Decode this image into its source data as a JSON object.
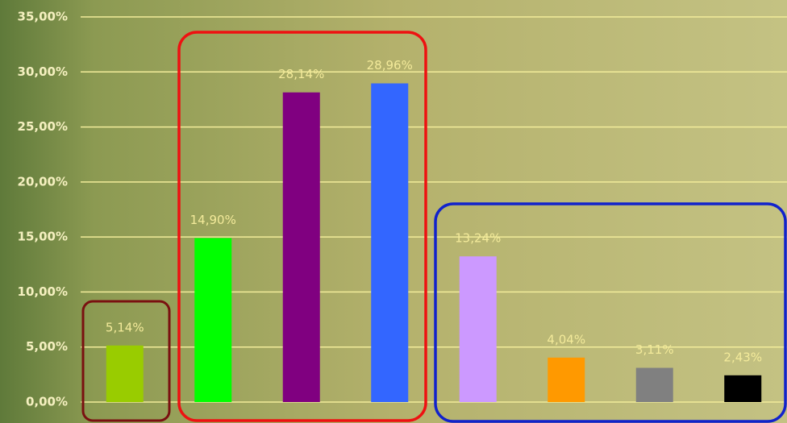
{
  "chart_data": {
    "type": "bar",
    "categories": [
      null,
      null,
      null,
      null,
      null,
      null,
      null,
      null
    ],
    "values": [
      5.14,
      14.9,
      28.14,
      28.96,
      13.24,
      4.04,
      3.11,
      2.43
    ],
    "value_labels": [
      "5,14%",
      "14,90%",
      "28,14%",
      "28,96%",
      "13,24%",
      "4,04%",
      "3,11%",
      "2,43%"
    ],
    "colors": [
      "#99cc00",
      "#00ff00",
      "#800080",
      "#3366ff",
      "#cc99ff",
      "#ff9900",
      "#808080",
      "#000000"
    ],
    "ylim": [
      0,
      35
    ],
    "yticks": [
      {
        "value": 0,
        "label": "0,00%"
      },
      {
        "value": 5,
        "label": "5,00%"
      },
      {
        "value": 10,
        "label": "10,00%"
      },
      {
        "value": 15,
        "label": "15,00%"
      },
      {
        "value": 20,
        "label": "20,00%"
      },
      {
        "value": 25,
        "label": "25,00%"
      },
      {
        "value": 30,
        "label": "30,00%"
      },
      {
        "value": 35,
        "label": "35,00%"
      }
    ],
    "grid": true
  }
}
